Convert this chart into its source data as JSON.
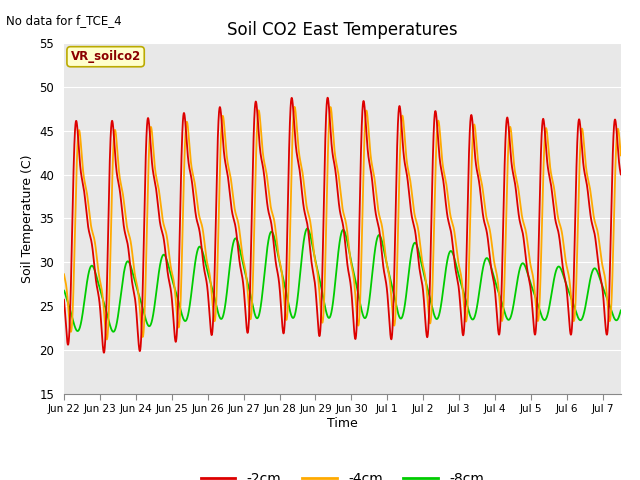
{
  "title": "Soil CO2 East Temperatures",
  "no_data_label": "No data for f_TCE_4",
  "legend_label": "VR_soilco2",
  "xlabel": "Time",
  "ylabel": "Soil Temperature (C)",
  "ylim": [
    15,
    55
  ],
  "xtick_labels": [
    "Jun 22",
    "Jun 23",
    "Jun 24",
    "Jun 25",
    "Jun 26",
    "Jun 27",
    "Jun 28",
    "Jun 29",
    "Jun 30",
    "Jul 1",
    "Jul 2",
    "Jul 3",
    "Jul 4",
    "Jul 5",
    "Jul 6",
    "Jul 7"
  ],
  "line_2cm_color": "#dd0000",
  "line_4cm_color": "#ffaa00",
  "line_8cm_color": "#00cc00",
  "background_color": "#e8e8e8",
  "grid_color": "#ffffff"
}
